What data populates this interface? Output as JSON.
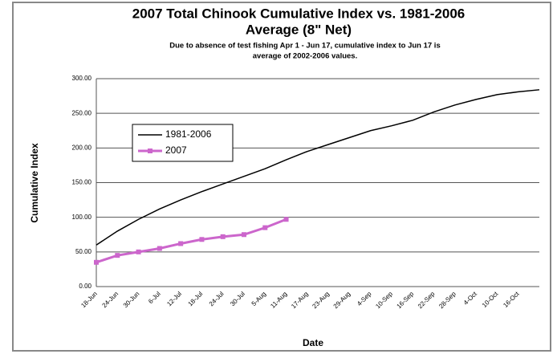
{
  "chart_data": {
    "type": "line",
    "title": "2007 Total Chinook  Cumulative Index vs. 1981-2006",
    "title_line2": "Average (8\" Net)",
    "subtitle": "Due to absence of test fishing Apr 1 - Jun 17, cumulative index to Jun 17 is",
    "subtitle_line2": "average of 2002-2006 values.",
    "y_label": "Cumulative Index",
    "x_label": "Date",
    "categories": [
      "18-Jun",
      "24-Jun",
      "30-Jun",
      "6-Jul",
      "12-Jul",
      "18-Jul",
      "24-Jul",
      "30-Jul",
      "5-Aug",
      "11-Aug",
      "17-Aug",
      "23-Aug",
      "29-Aug",
      "4-Sep",
      "10-Sep",
      "16-Sep",
      "22-Sep",
      "28-Sep",
      "4-Oct",
      "10-Oct",
      "16-Oct",
      null
    ],
    "series": [
      {
        "name": "1981-2006",
        "color": "#000000",
        "values": [
          60,
          80,
          97,
          112,
          125,
          137,
          148,
          159,
          170,
          183,
          195,
          205,
          215,
          225,
          232,
          240,
          252,
          262,
          270,
          277,
          281,
          284
        ]
      },
      {
        "name": "2007",
        "color": "#cc66cc",
        "values": [
          35,
          45,
          50,
          55,
          62,
          68,
          72,
          75,
          85,
          97,
          null,
          null,
          null,
          null,
          null,
          null,
          null,
          null,
          null,
          null,
          null,
          null
        ]
      }
    ],
    "ylim": [
      0,
      300
    ],
    "yticks": [
      {
        "value": 0,
        "label": "0.00"
      },
      {
        "value": 50,
        "label": "50.00"
      },
      {
        "value": 100,
        "label": "100.00"
      },
      {
        "value": 150,
        "label": "150.00"
      },
      {
        "value": 200,
        "label": "200.00"
      },
      {
        "value": 250,
        "label": "250.00"
      },
      {
        "value": 300,
        "label": "300.00"
      }
    ],
    "grid": true
  }
}
